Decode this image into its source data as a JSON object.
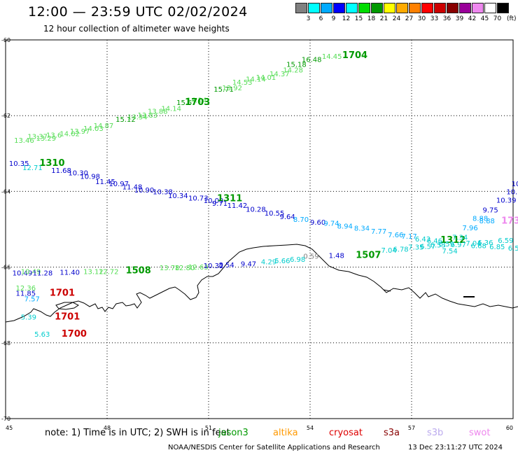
{
  "header": {
    "title": "12:00 — 23:59 UTC 02/02/2024",
    "subtitle": "12 hour collection of altimeter wave heights"
  },
  "legend": {
    "colors": [
      "#808080",
      "#00ffff",
      "#00aaff",
      "#0000ff",
      "#00ffff",
      "#00dd00",
      "#009900",
      "#ffff00",
      "#ffaa00",
      "#ff8000",
      "#ff0000",
      "#cc0000",
      "#880000",
      "#990099",
      "#ee88ee",
      "#ffffff",
      "#000000"
    ],
    "labels": [
      "3",
      "6",
      "9",
      "12",
      "15",
      "18",
      "21",
      "24",
      "27",
      "30",
      "33",
      "36",
      "39",
      "42",
      "45",
      "70"
    ],
    "unit": "(ft)"
  },
  "axes": {
    "x_ticks": [
      "45",
      "48",
      "51",
      "54",
      "57",
      "60"
    ],
    "y_ticks": [
      "-60",
      "-62",
      "-64",
      "-66",
      "-68",
      "-70"
    ]
  },
  "annotations": [
    {
      "text": "13.46",
      "color": "#55dd55",
      "lon": 45.25,
      "lat": -62.72
    },
    {
      "text": "13.37",
      "color": "#55dd55",
      "lon": 45.65,
      "lat": -62.62
    },
    {
      "text": "13.29",
      "color": "#55dd55",
      "lon": 45.9,
      "lat": -62.66
    },
    {
      "text": "13.6",
      "color": "#55dd55",
      "lon": 46.2,
      "lat": -62.58
    },
    {
      "text": "14.02",
      "color": "#55dd55",
      "lon": 46.6,
      "lat": -62.54
    },
    {
      "text": "13.97",
      "color": "#55dd55",
      "lon": 46.9,
      "lat": -62.48
    },
    {
      "text": "14.03",
      "color": "#55dd55",
      "lon": 47.3,
      "lat": -62.4
    },
    {
      "text": "14.87",
      "color": "#55dd55",
      "lon": 47.6,
      "lat": -62.33
    },
    {
      "text": "15.12",
      "color": "#009900",
      "lon": 48.25,
      "lat": -62.16
    },
    {
      "text": "13.34",
      "color": "#55dd55",
      "lon": 48.6,
      "lat": -62.1
    },
    {
      "text": "13.83",
      "color": "#55dd55",
      "lon": 48.9,
      "lat": -62.05
    },
    {
      "text": "13.88",
      "color": "#55dd55",
      "lon": 49.2,
      "lat": -61.95
    },
    {
      "text": "14.14",
      "color": "#55dd55",
      "lon": 49.6,
      "lat": -61.88
    },
    {
      "text": "15.57",
      "color": "#009900",
      "lon": 50.05,
      "lat": -61.72
    },
    {
      "text": "14.14",
      "color": "#55dd55",
      "lon": 50.35,
      "lat": -61.65
    },
    {
      "text": "15.71",
      "color": "#009900",
      "lon": 51.15,
      "lat": -61.37
    },
    {
      "text": "13.92",
      "color": "#55dd55",
      "lon": 51.4,
      "lat": -61.33
    },
    {
      "text": "14.53",
      "color": "#55dd55",
      "lon": 51.7,
      "lat": -61.18
    },
    {
      "text": "14.14",
      "color": "#55dd55",
      "lon": 52.1,
      "lat": -61.1
    },
    {
      "text": "14.01",
      "color": "#55dd55",
      "lon": 52.4,
      "lat": -61.05
    },
    {
      "text": "14.37",
      "color": "#55dd55",
      "lon": 52.8,
      "lat": -60.96
    },
    {
      "text": "14.28",
      "color": "#55dd55",
      "lon": 53.2,
      "lat": -60.86
    },
    {
      "text": "15.18",
      "color": "#009900",
      "lon": 53.3,
      "lat": -60.71
    },
    {
      "text": "16.48",
      "color": "#009900",
      "lon": 53.75,
      "lat": -60.58
    },
    {
      "text": "14.45",
      "color": "#55dd55",
      "lon": 54.35,
      "lat": -60.5
    },
    {
      "text": "1703",
      "color": "#009900",
      "lon": 50.3,
      "lat": -61.72,
      "bold": true
    },
    {
      "text": "1704",
      "color": "#009900",
      "lon": 54.95,
      "lat": -60.48,
      "bold": true
    },
    {
      "text": "10.35",
      "color": "#0000cc",
      "lon": 45.1,
      "lat": -63.33
    },
    {
      "text": "12.71",
      "color": "#00cccc",
      "lon": 45.5,
      "lat": -63.44
    },
    {
      "text": "1310",
      "color": "#009900",
      "lon": 46.0,
      "lat": -63.33,
      "bold": true
    },
    {
      "text": "11.68",
      "color": "#0000cc",
      "lon": 46.35,
      "lat": -63.51
    },
    {
      "text": "10.30",
      "color": "#0000cc",
      "lon": 46.85,
      "lat": -63.58
    },
    {
      "text": "10.98",
      "color": "#0000cc",
      "lon": 47.2,
      "lat": -63.67
    },
    {
      "text": "11.45",
      "color": "#0000cc",
      "lon": 47.65,
      "lat": -63.81
    },
    {
      "text": "10.97",
      "color": "#0000cc",
      "lon": 48.05,
      "lat": -63.86
    },
    {
      "text": "11.48",
      "color": "#0000cc",
      "lon": 48.45,
      "lat": -63.95
    },
    {
      "text": "10.90",
      "color": "#0000cc",
      "lon": 48.8,
      "lat": -64.03
    },
    {
      "text": "10.38",
      "color": "#0000cc",
      "lon": 49.35,
      "lat": -64.08
    },
    {
      "text": "10.34",
      "color": "#0000cc",
      "lon": 49.8,
      "lat": -64.18
    },
    {
      "text": "10.73",
      "color": "#0000cc",
      "lon": 50.4,
      "lat": -64.24
    },
    {
      "text": "10.09",
      "color": "#0000cc",
      "lon": 50.85,
      "lat": -64.31
    },
    {
      "text": "1311",
      "color": "#009900",
      "lon": 51.25,
      "lat": -64.26,
      "bold": true
    },
    {
      "text": "9.71",
      "color": "#0000cc",
      "lon": 51.1,
      "lat": -64.38
    },
    {
      "text": "11.42",
      "color": "#0000cc",
      "lon": 51.55,
      "lat": -64.44
    },
    {
      "text": "10.28",
      "color": "#0000cc",
      "lon": 52.1,
      "lat": -64.54
    },
    {
      "text": "10.55",
      "color": "#0000cc",
      "lon": 52.65,
      "lat": -64.64
    },
    {
      "text": "9.64",
      "color": "#0000cc",
      "lon": 53.1,
      "lat": -64.73
    },
    {
      "text": "8.70",
      "color": "#00aaff",
      "lon": 53.5,
      "lat": -64.81
    },
    {
      "text": "9.60",
      "color": "#0000cc",
      "lon": 54.0,
      "lat": -64.88
    },
    {
      "text": "9.74",
      "color": "#00aaff",
      "lon": 54.4,
      "lat": -64.91
    },
    {
      "text": "8.94",
      "color": "#00aaff",
      "lon": 54.8,
      "lat": -64.98
    },
    {
      "text": "8.34",
      "color": "#00aaff",
      "lon": 55.3,
      "lat": -65.04
    },
    {
      "text": "7.77",
      "color": "#00aaff",
      "lon": 55.8,
      "lat": -65.12
    },
    {
      "text": "7.66",
      "color": "#00aaff",
      "lon": 56.3,
      "lat": -65.21
    },
    {
      "text": "7.17",
      "color": "#00aaff",
      "lon": 56.7,
      "lat": -65.25
    },
    {
      "text": "6.43",
      "color": "#00cccc",
      "lon": 57.1,
      "lat": -65.32
    },
    {
      "text": "6.46",
      "color": "#00cccc",
      "lon": 57.45,
      "lat": -65.37
    },
    {
      "text": "1312",
      "color": "#009900",
      "lon": 57.85,
      "lat": -65.36,
      "bold": true
    },
    {
      "text": "7.34",
      "color": "#00cccc",
      "lon": 58.2,
      "lat": -65.28
    },
    {
      "text": "7.96",
      "color": "#00aaff",
      "lon": 58.5,
      "lat": -65.03
    },
    {
      "text": "8.88",
      "color": "#00aaff",
      "lon": 58.8,
      "lat": -64.78
    },
    {
      "text": "8.88",
      "color": "#00aaff",
      "lon": 59.0,
      "lat": -64.84
    },
    {
      "text": "9.75",
      "color": "#0000cc",
      "lon": 59.1,
      "lat": -64.56
    },
    {
      "text": "10.39",
      "color": "#0000cc",
      "lon": 59.5,
      "lat": -64.3
    },
    {
      "text": "10.5",
      "color": "#0000cc",
      "lon": 59.8,
      "lat": -64.08
    },
    {
      "text": "10",
      "color": "#0000cc",
      "lon": 59.95,
      "lat": -63.86
    },
    {
      "text": "7.04",
      "color": "#00cccc",
      "lon": 56.1,
      "lat": -65.62
    },
    {
      "text": "6.78",
      "color": "#00cccc",
      "lon": 56.45,
      "lat": -65.59
    },
    {
      "text": "7.35",
      "color": "#00cccc",
      "lon": 56.9,
      "lat": -65.54
    },
    {
      "text": "6.57",
      "color": "#00cccc",
      "lon": 57.25,
      "lat": -65.52
    },
    {
      "text": "6.53",
      "color": "#00cccc",
      "lon": 57.55,
      "lat": -65.48
    },
    {
      "text": "6.59",
      "color": "#00cccc",
      "lon": 57.8,
      "lat": -65.45
    },
    {
      "text": "7.54",
      "color": "#00cccc",
      "lon": 57.9,
      "lat": -65.64
    },
    {
      "text": "6.97",
      "color": "#00cccc",
      "lon": 58.15,
      "lat": -65.47
    },
    {
      "text": "7.04",
      "color": "#00cccc",
      "lon": 58.6,
      "lat": -65.43
    },
    {
      "text": "6.36",
      "color": "#00cccc",
      "lon": 58.95,
      "lat": -65.42
    },
    {
      "text": "6.68",
      "color": "#00cccc",
      "lon": 58.75,
      "lat": -65.5
    },
    {
      "text": "6.85",
      "color": "#00cccc",
      "lon": 59.3,
      "lat": -65.53
    },
    {
      "text": "6.59",
      "color": "#00cccc",
      "lon": 59.55,
      "lat": -65.36
    },
    {
      "text": "6.5",
      "color": "#00cccc",
      "lon": 59.85,
      "lat": -65.56
    },
    {
      "text": "173",
      "color": "#ee88ee",
      "lon": 59.65,
      "lat": -64.85,
      "bold": true
    },
    {
      "text": "0.59",
      "color": "#808080",
      "lon": 53.8,
      "lat": -65.78
    },
    {
      "text": "1.48",
      "color": "#0000cc",
      "lon": 54.55,
      "lat": -65.76
    },
    {
      "text": "1507",
      "color": "#009900",
      "lon": 55.35,
      "lat": -65.76,
      "bold": true
    },
    {
      "text": "10.49",
      "color": "#0000cc",
      "lon": 45.2,
      "lat": -66.22
    },
    {
      "text": "10.49",
      "color": "#55dd55",
      "lon": 45.45,
      "lat": -66.18
    },
    {
      "text": "11.28",
      "color": "#0000cc",
      "lon": 45.8,
      "lat": -66.22
    },
    {
      "text": "11.40",
      "color": "#0000cc",
      "lon": 46.6,
      "lat": -66.2
    },
    {
      "text": "13.12",
      "color": "#55dd55",
      "lon": 47.3,
      "lat": -66.18
    },
    {
      "text": "12.72",
      "color": "#55dd55",
      "lon": 47.75,
      "lat": -66.18
    },
    {
      "text": "1508",
      "color": "#009900",
      "lon": 48.55,
      "lat": -66.16,
      "bold": true
    },
    {
      "text": "13.78",
      "color": "#55dd55",
      "lon": 49.55,
      "lat": -66.08
    },
    {
      "text": "12.80",
      "color": "#55dd55",
      "lon": 50.0,
      "lat": -66.08
    },
    {
      "text": "12.63",
      "color": "#55dd55",
      "lon": 50.4,
      "lat": -66.06
    },
    {
      "text": "10.32",
      "color": "#0000cc",
      "lon": 50.85,
      "lat": -66.03
    },
    {
      "text": "8.54",
      "color": "#0000cc",
      "lon": 51.3,
      "lat": -66.01
    },
    {
      "text": "9.47",
      "color": "#0000cc",
      "lon": 51.95,
      "lat": -65.98
    },
    {
      "text": "4.29",
      "color": "#00cccc",
      "lon": 52.55,
      "lat": -65.92
    },
    {
      "text": "5.66",
      "color": "#00cccc",
      "lon": 52.95,
      "lat": -65.9
    },
    {
      "text": "6.98",
      "color": "#00cccc",
      "lon": 53.4,
      "lat": -65.86
    },
    {
      "text": "12.36",
      "color": "#55dd55",
      "lon": 45.3,
      "lat": -66.62
    },
    {
      "text": "11.85",
      "color": "#0000cc",
      "lon": 45.3,
      "lat": -66.76
    },
    {
      "text": "7.57",
      "color": "#00aaff",
      "lon": 45.55,
      "lat": -66.9
    },
    {
      "text": "1701",
      "color": "#cc0000",
      "lon": 46.3,
      "lat": -66.76,
      "bold": true
    },
    {
      "text": "5.39",
      "color": "#00cccc",
      "lon": 45.45,
      "lat": -67.38
    },
    {
      "text": "1701",
      "color": "#cc0000",
      "lon": 46.45,
      "lat": -67.38,
      "bold": true
    },
    {
      "text": "5.63",
      "color": "#00cccc",
      "lon": 45.85,
      "lat": -67.84
    },
    {
      "text": "1700",
      "color": "#cc0000",
      "lon": 46.65,
      "lat": -67.84,
      "bold": true
    }
  ],
  "footer": {
    "note": "note:  1) Time is in UTC; 2) SWH is in feet",
    "satellites": [
      {
        "name": "jason3",
        "color": "#009900"
      },
      {
        "name": "altika",
        "color": "#ff9900"
      },
      {
        "name": "cryosat",
        "color": "#dd0000"
      },
      {
        "name": "s3a",
        "color": "#880000"
      },
      {
        "name": "s3b",
        "color": "#bbaaee"
      },
      {
        "name": "swot",
        "color": "#ee88ee"
      }
    ],
    "credit": "NOAA/NESDIS Center for Satellite Applications and Research",
    "timestamp": "13 Dec 23:11:27 UTC 2024"
  }
}
